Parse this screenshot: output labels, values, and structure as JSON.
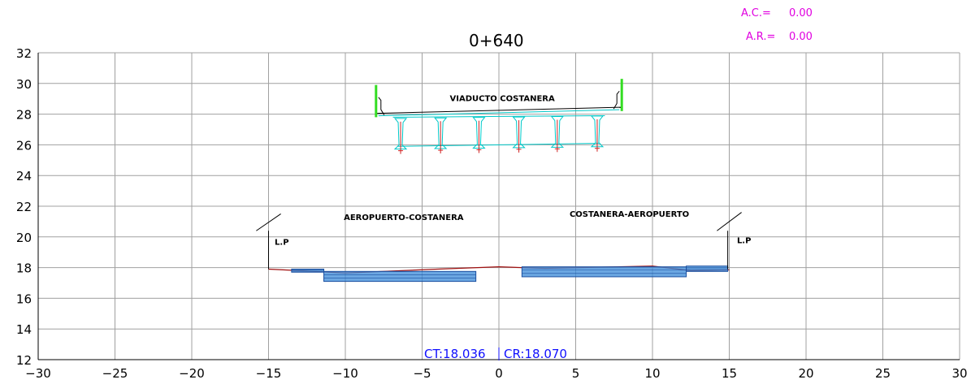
{
  "header": {
    "ac_label": "A.C.=",
    "ac_value": "0.00",
    "ar_label": "A.R.=",
    "ar_value": "0.00",
    "station": "0+640"
  },
  "axes": {
    "x_ticks": [
      "-30",
      "-25",
      "-20",
      "-15",
      "-10",
      "-5",
      "0",
      "5",
      "10",
      "15",
      "20",
      "25",
      "30"
    ],
    "y_ticks": [
      "32",
      "30",
      "28",
      "26",
      "24",
      "22",
      "20",
      "18",
      "16",
      "14",
      "12"
    ],
    "x_range": [
      -30,
      30
    ],
    "y_range": [
      12,
      32
    ],
    "grid": true
  },
  "labels": {
    "viaduct": "VIADUCTO COSTANERA",
    "left_road": "AEROPUERTO-COSTANERA",
    "right_road": "COSTANERA-AEROPUERTO",
    "lp_left": "L.P",
    "lp_right": "L.P",
    "ct": "CT:18.036",
    "cr": "CR:18.070"
  },
  "colors": {
    "grid": "#a0a0a0",
    "deck": "#00c8c8",
    "barrier": "#33dd22",
    "terrain": "#a01010",
    "pavement": "#3a8ad8",
    "header": "#e000e0",
    "elevation": "#1010ff"
  },
  "geometry": {
    "viaduct_deck": {
      "x": [
        -8,
        8
      ],
      "y_left": 28.05,
      "y_right": 28.45
    },
    "girders_x": [
      -6.4,
      -3.8,
      -1.3,
      1.3,
      3.8,
      6.4
    ],
    "terrain_line": [
      [
        -15,
        17.9
      ],
      [
        -13,
        17.8
      ],
      [
        -10,
        17.65
      ],
      [
        -4,
        17.9
      ],
      [
        0,
        18.05
      ],
      [
        3,
        17.95
      ],
      [
        10,
        18.1
      ],
      [
        12.5,
        17.8
      ],
      [
        15,
        17.85
      ]
    ],
    "left_pavement": [
      [
        -13.5,
        17.8,
        -11.5,
        17.9
      ],
      [
        -11.5,
        17.2,
        -1.5,
        17.85
      ]
    ],
    "right_pavement": [
      [
        1.5,
        17.75,
        12.3,
        17.55
      ],
      [
        12.3,
        17.8,
        15,
        17.9
      ]
    ]
  }
}
